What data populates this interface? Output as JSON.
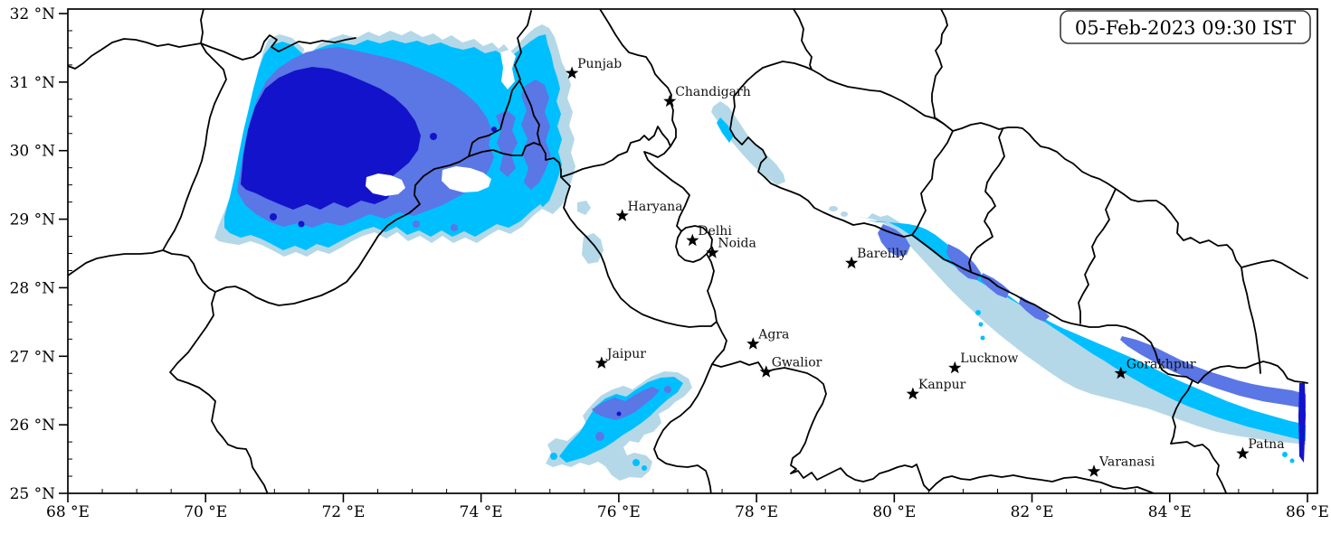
{
  "figure": {
    "timestamp": "05-Feb-2023 09:30 IST",
    "description": "Satellite-derived fog/low-cloud extent map over north India"
  },
  "axes": {
    "x": {
      "suffix": " °E",
      "major_ticks": [
        68,
        70,
        72,
        74,
        76,
        78,
        80,
        82,
        84,
        86
      ],
      "minor_step": 0.5,
      "min": 68,
      "max": 86.15
    },
    "y": {
      "suffix": " °N",
      "major_ticks": [
        25,
        26,
        27,
        28,
        29,
        30,
        31,
        32
      ],
      "minor_step": 0.25,
      "min": 25,
      "max": 32.07
    }
  },
  "cities": [
    {
      "name": "Punjab",
      "lon": 75.32,
      "lat": 31.13
    },
    {
      "name": "Chandigarh",
      "lon": 76.74,
      "lat": 30.72
    },
    {
      "name": "Haryana",
      "lon": 76.05,
      "lat": 29.05
    },
    {
      "name": "Delhi",
      "lon": 77.07,
      "lat": 28.69
    },
    {
      "name": "Noida",
      "lon": 77.36,
      "lat": 28.51
    },
    {
      "name": "Bareilly",
      "lon": 79.38,
      "lat": 28.36
    },
    {
      "name": "Agra",
      "lon": 77.95,
      "lat": 27.18
    },
    {
      "name": "Jaipur",
      "lon": 75.75,
      "lat": 26.9
    },
    {
      "name": "Gwalior",
      "lon": 78.14,
      "lat": 26.77
    },
    {
      "name": "Lucknow",
      "lon": 80.88,
      "lat": 26.83
    },
    {
      "name": "Kanpur",
      "lon": 80.27,
      "lat": 26.45
    },
    {
      "name": "Gorakhpur",
      "lon": 83.29,
      "lat": 26.75
    },
    {
      "name": "Varanasi",
      "lon": 82.9,
      "lat": 25.32
    },
    {
      "name": "Patna",
      "lon": 85.06,
      "lat": 25.58
    }
  ],
  "fog_colors": {
    "level_1_light": "#B4D8E8",
    "level_2_moderate": "#00BFFF",
    "level_3_dense": "#5B76E5",
    "level_4_very_dense": "#1313CB"
  },
  "line_color": "#000000"
}
